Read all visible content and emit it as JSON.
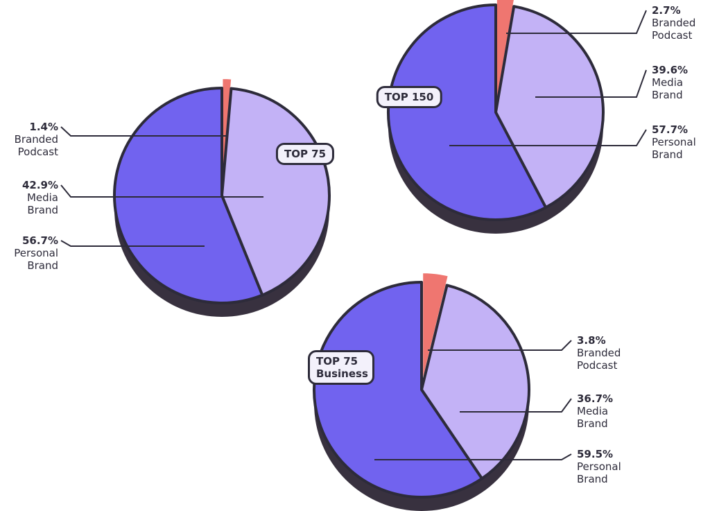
{
  "chart_data": [
    {
      "type": "pie",
      "title": "TOP 75",
      "categories": [
        "Branded Podcast",
        "Media Brand",
        "Personal Brand"
      ],
      "values": [
        1.4,
        42.9,
        56.7
      ],
      "value_labels": [
        "1.4%",
        "42.9%",
        "56.7%"
      ],
      "colors": [
        "#ef7670",
        "#c3b2f6",
        "#7163ef"
      ]
    },
    {
      "type": "pie",
      "title": "TOP 150",
      "categories": [
        "Branded Podcast",
        "Media Brand",
        "Personal Brand"
      ],
      "values": [
        2.7,
        39.6,
        57.7
      ],
      "value_labels": [
        "2.7%",
        "39.6%",
        "57.7%"
      ],
      "colors": [
        "#ef7670",
        "#c3b2f6",
        "#7163ef"
      ]
    },
    {
      "type": "pie",
      "title": "TOP 75 Business",
      "categories": [
        "Branded Podcast",
        "Media Brand",
        "Personal Brand"
      ],
      "values": [
        3.8,
        36.7,
        59.5
      ],
      "value_labels": [
        "3.8%",
        "36.7%",
        "59.5%"
      ],
      "colors": [
        "#ef7670",
        "#c3b2f6",
        "#7163ef"
      ]
    }
  ]
}
